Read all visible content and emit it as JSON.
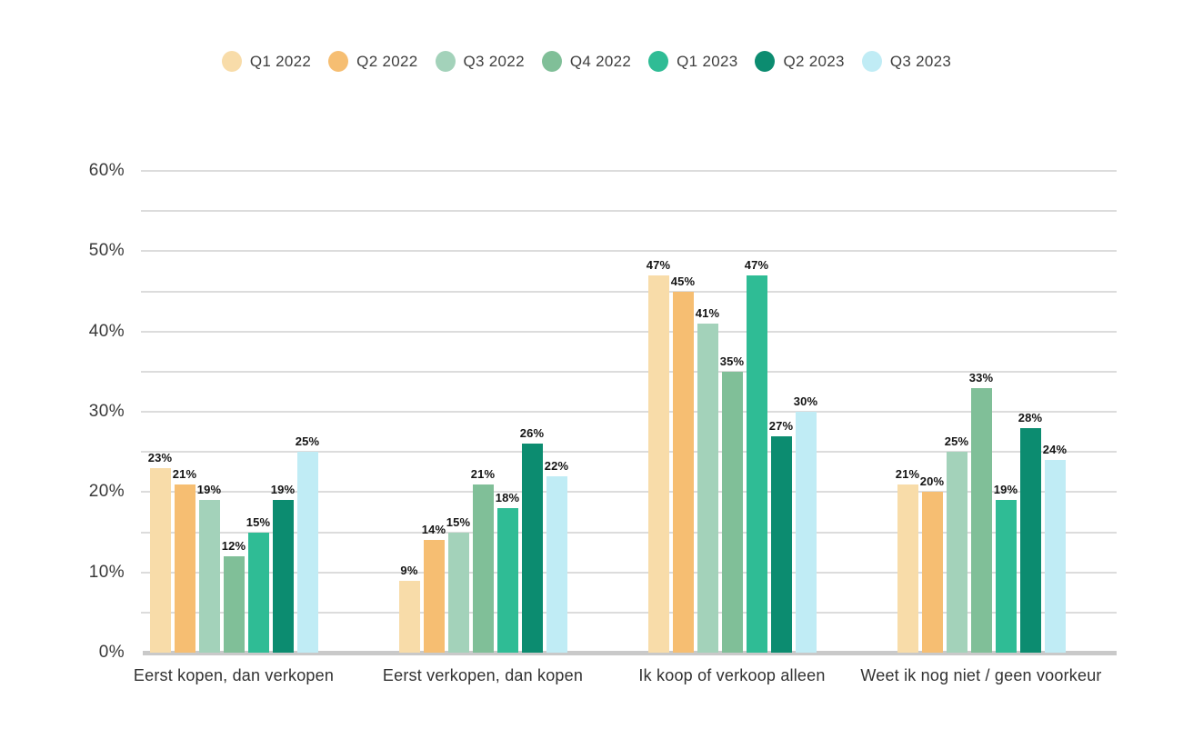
{
  "chart_data": {
    "type": "bar",
    "categories": [
      "Eerst kopen, dan verkopen",
      "Eerst verkopen, dan kopen",
      "Ik koop of verkoop alleen",
      "Weet ik nog niet / geen voorkeur"
    ],
    "series": [
      {
        "name": "Q1 2022",
        "color": "#F8DCA9",
        "values": [
          23,
          9,
          47,
          21
        ]
      },
      {
        "name": "Q2 2022",
        "color": "#F6BE72",
        "values": [
          21,
          14,
          45,
          20
        ]
      },
      {
        "name": "Q3 2022",
        "color": "#A3D2BA",
        "values": [
          19,
          15,
          41,
          25
        ]
      },
      {
        "name": "Q4 2022",
        "color": "#80BF98",
        "values": [
          12,
          21,
          35,
          33
        ]
      },
      {
        "name": "Q1 2023",
        "color": "#2FBC95",
        "values": [
          15,
          18,
          47,
          19
        ]
      },
      {
        "name": "Q2 2023",
        "color": "#0C8C70",
        "values": [
          19,
          26,
          27,
          28
        ]
      },
      {
        "name": "Q3 2023",
        "color": "#C0ECF5",
        "values": [
          25,
          22,
          30,
          24
        ]
      }
    ],
    "title": "",
    "xlabel": "",
    "ylabel": "",
    "ylim": [
      0,
      60
    ],
    "ytick_label_interval": 10,
    "grid_interval": 5,
    "tick_suffix": "%",
    "value_label_suffix": "%",
    "grid": true,
    "legend_position": "top"
  }
}
